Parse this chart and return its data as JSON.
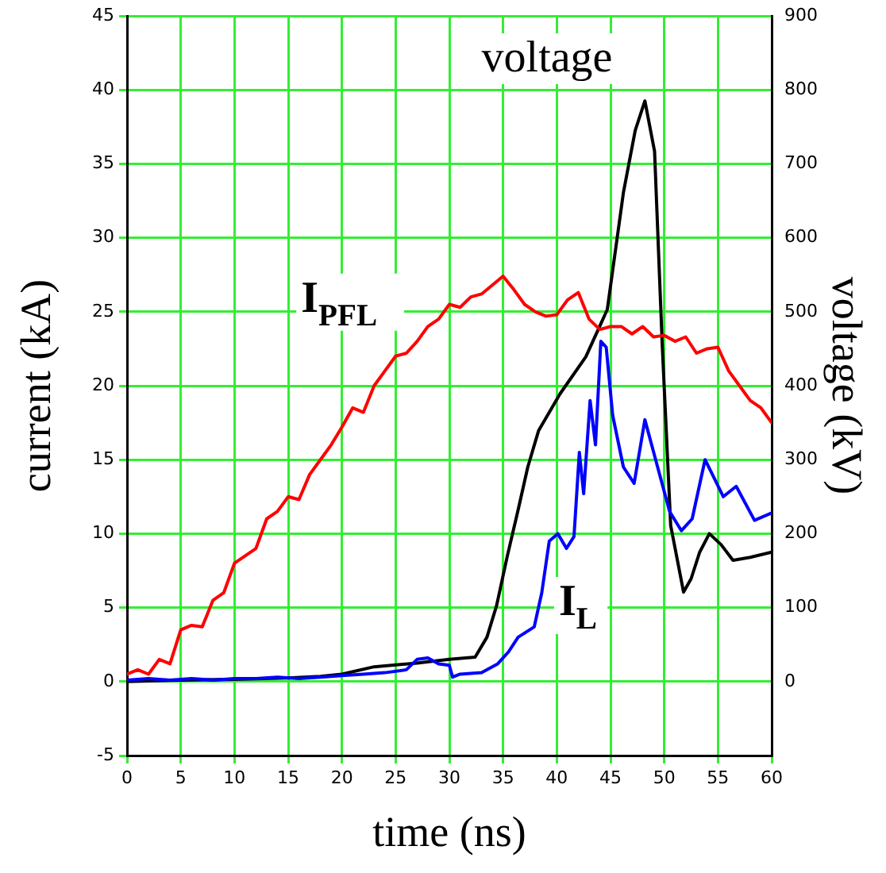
{
  "chart_data": {
    "type": "line",
    "xlabel": "time (ns)",
    "ylabel": "current (kA)",
    "y2label": "voltage (kV)",
    "xlim": [
      0,
      60
    ],
    "xticks": [
      0,
      5,
      10,
      15,
      20,
      25,
      30,
      35,
      40,
      45,
      50,
      55,
      60
    ],
    "ylim": [
      -5,
      45
    ],
    "yticks": [
      -5,
      0,
      5,
      10,
      15,
      20,
      25,
      30,
      35,
      40,
      45
    ],
    "y2lim": [
      -100,
      900
    ],
    "y2ticks": [
      0,
      100,
      200,
      300,
      400,
      500,
      600,
      700,
      800,
      900
    ],
    "grid": true,
    "legend": false,
    "marker": "none",
    "line_style": "solid",
    "series": [
      {
        "color": "#ff0000",
        "x": [
          0,
          1,
          2,
          3,
          4,
          5,
          6,
          7,
          8,
          9,
          10,
          11,
          12,
          13,
          14,
          15,
          16,
          17,
          18,
          19,
          20,
          21,
          22,
          23,
          24,
          25,
          26,
          27,
          28,
          29,
          30,
          31,
          32,
          33,
          34,
          35,
          36,
          37,
          38,
          39,
          40,
          41,
          42,
          43,
          44,
          45,
          46,
          47,
          48,
          49,
          50,
          51,
          52,
          53,
          54,
          55,
          56,
          57,
          58,
          59,
          60
        ],
        "values": [
          0.5,
          0.8,
          0.5,
          1.5,
          1.2,
          3.5,
          3.8,
          3.7,
          5.5,
          6,
          8,
          8.5,
          9,
          11,
          11.5,
          12.5,
          12.3,
          14,
          15,
          16,
          17.2,
          18.5,
          18.2,
          20,
          21,
          22,
          22.2,
          23,
          24,
          24.5,
          25.5,
          25.3,
          26,
          26.2,
          26.8,
          27.4,
          26.5,
          25.5,
          25,
          24.7,
          24.8,
          25.8,
          26.3,
          24.5,
          23.8,
          24,
          24,
          23.5,
          24,
          23.3,
          23.4,
          23,
          23.3,
          22.2,
          22.5,
          22.6,
          21,
          20,
          19,
          18.5,
          17.5
        ]
      },
      {
        "color": "#0000ff",
        "x": [
          0,
          2,
          4,
          6,
          8,
          10,
          12,
          14,
          16,
          18,
          20,
          22,
          24,
          26,
          27,
          28,
          29,
          30,
          30.3,
          31,
          33,
          34.5,
          35.5,
          36.4,
          37.9,
          38.6,
          39.3,
          40.1,
          40.9,
          41.6,
          42.1,
          42.5,
          43.1,
          43.6,
          44.1,
          44.6,
          45.2,
          46.2,
          47.2,
          48.2,
          49.2,
          50.5,
          51.6,
          52.6,
          53.8,
          55.5,
          56.7,
          58.4,
          60
        ],
        "values": [
          0.1,
          0.2,
          0.1,
          0.2,
          0.1,
          0.2,
          0.2,
          0.3,
          0.2,
          0.3,
          0.4,
          0.5,
          0.6,
          0.8,
          1.5,
          1.6,
          1.2,
          1.1,
          0.3,
          0.5,
          0.6,
          1.2,
          2,
          3,
          3.7,
          6,
          9.5,
          10,
          9,
          9.8,
          15.5,
          12.7,
          19,
          16,
          23,
          22.6,
          18,
          14.5,
          13.4,
          17.7,
          15,
          11.5,
          10.2,
          11,
          15,
          12.5,
          13.2,
          10.9,
          11.4
        ]
      },
      {
        "color": "#000000",
        "axis": "y2",
        "x": [
          0,
          5,
          10,
          15,
          18,
          20,
          23,
          27,
          30,
          32.4,
          33.5,
          34.4,
          35.4,
          36.4,
          37.3,
          38.3,
          40.3,
          42.7,
          44.7,
          46.2,
          47.3,
          48.2,
          49.1,
          49.8,
          50.6,
          51.8,
          52.5,
          53.3,
          54.2,
          55.3,
          56.4,
          58,
          60
        ],
        "values": [
          0,
          2,
          3,
          5,
          7,
          10,
          20,
          25,
          30,
          33,
          60,
          103,
          170,
          232,
          290,
          339,
          389,
          439,
          503,
          661,
          745,
          785,
          717,
          460,
          211,
          121,
          139,
          175,
          200,
          185,
          164,
          168,
          175
        ]
      }
    ],
    "annotations": [
      "voltage",
      "I$_{PFL}$",
      "I$_{L}$"
    ]
  }
}
